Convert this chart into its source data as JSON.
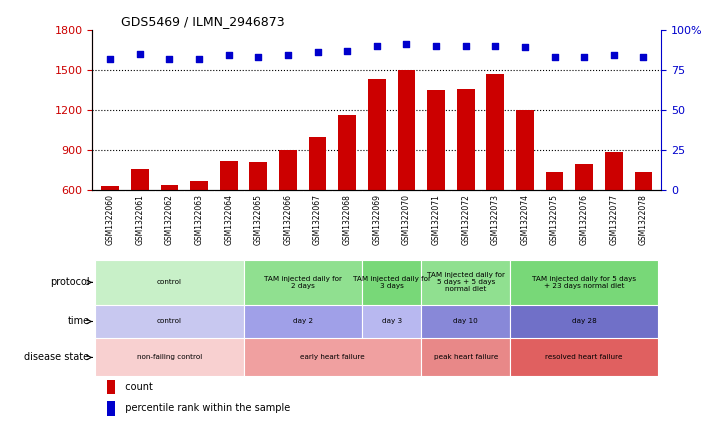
{
  "title": "GDS5469 / ILMN_2946873",
  "samples": [
    "GSM1322060",
    "GSM1322061",
    "GSM1322062",
    "GSM1322063",
    "GSM1322064",
    "GSM1322065",
    "GSM1322066",
    "GSM1322067",
    "GSM1322068",
    "GSM1322069",
    "GSM1322070",
    "GSM1322071",
    "GSM1322072",
    "GSM1322073",
    "GSM1322074",
    "GSM1322075",
    "GSM1322076",
    "GSM1322077",
    "GSM1322078"
  ],
  "counts": [
    630,
    760,
    640,
    670,
    820,
    810,
    900,
    1000,
    1160,
    1430,
    1500,
    1350,
    1360,
    1470,
    1200,
    740,
    800,
    890,
    740
  ],
  "percentiles": [
    82,
    85,
    82,
    82,
    84,
    83,
    84,
    86,
    87,
    90,
    91,
    90,
    90,
    90,
    89,
    83,
    83,
    84,
    83
  ],
  "bar_color": "#cc0000",
  "dot_color": "#0000cc",
  "ylim_left": [
    600,
    1800
  ],
  "ylim_right": [
    0,
    100
  ],
  "yticks_left": [
    600,
    900,
    1200,
    1500,
    1800
  ],
  "yticks_right": [
    0,
    25,
    50,
    75,
    100
  ],
  "ytick_labels_right": [
    "0",
    "25",
    "50",
    "75",
    "100%"
  ],
  "grid_lines": [
    900,
    1200,
    1500
  ],
  "protocol_groups": [
    {
      "label": "control",
      "start": 0,
      "end": 5,
      "color": "#c8f0c8"
    },
    {
      "label": "TAM injected daily for\n2 days",
      "start": 5,
      "end": 9,
      "color": "#90e090"
    },
    {
      "label": "TAM injected daily for\n3 days",
      "start": 9,
      "end": 11,
      "color": "#78d878"
    },
    {
      "label": "TAM injected daily for\n5 days + 5 days\nnormal diet",
      "start": 11,
      "end": 14,
      "color": "#90e090"
    },
    {
      "label": "TAM injected daily for 5 days\n+ 23 days normal diet",
      "start": 14,
      "end": 19,
      "color": "#78d878"
    }
  ],
  "time_groups": [
    {
      "label": "control",
      "start": 0,
      "end": 5,
      "color": "#c8c8f0"
    },
    {
      "label": "day 2",
      "start": 5,
      "end": 9,
      "color": "#a0a0e8"
    },
    {
      "label": "day 3",
      "start": 9,
      "end": 11,
      "color": "#b8b8f0"
    },
    {
      "label": "day 10",
      "start": 11,
      "end": 14,
      "color": "#8888d8"
    },
    {
      "label": "day 28",
      "start": 14,
      "end": 19,
      "color": "#7070c8"
    }
  ],
  "disease_groups": [
    {
      "label": "non-failing control",
      "start": 0,
      "end": 5,
      "color": "#f8d0d0"
    },
    {
      "label": "early heart failure",
      "start": 5,
      "end": 11,
      "color": "#f0a0a0"
    },
    {
      "label": "peak heart failure",
      "start": 11,
      "end": 14,
      "color": "#e88888"
    },
    {
      "label": "resolved heart failure",
      "start": 14,
      "end": 19,
      "color": "#e06060"
    }
  ],
  "legend_items": [
    {
      "color": "#cc0000",
      "label": "count"
    },
    {
      "color": "#0000cc",
      "label": "percentile rank within the sample"
    }
  ],
  "bg_color": "#ffffff",
  "axis_color_left": "#cc0000",
  "axis_color_right": "#0000cc",
  "tick_area_color": "#d0d0d0"
}
